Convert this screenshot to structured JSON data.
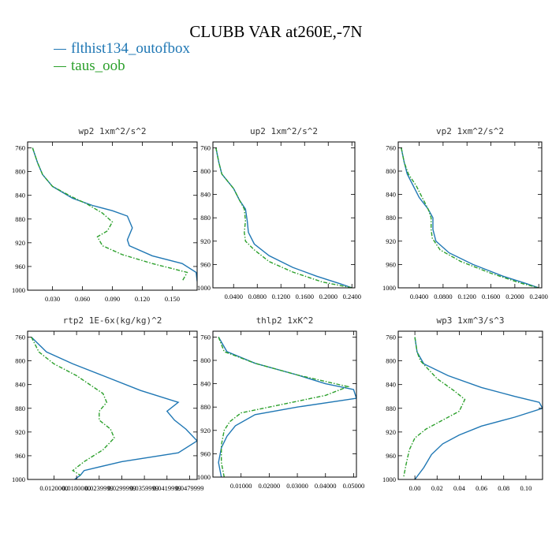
{
  "title": "CLUBB VAR at260E,-7N",
  "colors": {
    "series1": "#1f77b4",
    "series2": "#2ca02c",
    "frame": "#000000"
  },
  "legend": [
    {
      "name": "flthist134_outofbox",
      "color": "#1f77b4",
      "dash": "solid"
    },
    {
      "name": "taus_oob",
      "color": "#2ca02c",
      "dash": "dashdot"
    }
  ],
  "chart_data": [
    {
      "type": "line",
      "title": "wp2  1xm^2/s^2",
      "xlim": [
        0.005,
        0.175
      ],
      "ylim": [
        1000,
        750
      ],
      "y_inverted": true,
      "xticks": [
        0.03,
        0.06,
        0.09,
        0.12,
        0.15
      ],
      "xtick_labels": [
        "0.030",
        "0.060",
        "0.090",
        "0.120",
        "0.150"
      ],
      "yticks": [
        760,
        800,
        840,
        880,
        920,
        960,
        1000
      ],
      "ytick_labels": [
        "760",
        "800",
        "840",
        "880",
        "920",
        "960",
        "1000"
      ],
      "series": [
        {
          "name": "flthist134_outofbox",
          "points": [
            [
              0.01,
              760
            ],
            [
              0.015,
              785
            ],
            [
              0.02,
              805
            ],
            [
              0.03,
              825
            ],
            [
              0.05,
              845
            ],
            [
              0.07,
              857
            ],
            [
              0.09,
              866
            ],
            [
              0.105,
              875
            ],
            [
              0.11,
              895
            ],
            [
              0.105,
              915
            ],
            [
              0.107,
              925
            ],
            [
              0.13,
              942
            ],
            [
              0.16,
              955
            ],
            [
              0.174,
              970
            ],
            [
              0.175,
              985
            ]
          ]
        },
        {
          "name": "taus_oob",
          "points": [
            [
              0.01,
              760
            ],
            [
              0.015,
              785
            ],
            [
              0.02,
              805
            ],
            [
              0.03,
              825
            ],
            [
              0.05,
              843
            ],
            [
              0.065,
              855
            ],
            [
              0.08,
              870
            ],
            [
              0.09,
              885
            ],
            [
              0.085,
              900
            ],
            [
              0.075,
              910
            ],
            [
              0.08,
              925
            ],
            [
              0.1,
              940
            ],
            [
              0.13,
              955
            ],
            [
              0.165,
              970
            ],
            [
              0.16,
              985
            ]
          ]
        }
      ]
    },
    {
      "type": "line",
      "title": "up2  1xm^2/s^2",
      "xlim": [
        0.005,
        0.245
      ],
      "ylim": [
        1000,
        750
      ],
      "y_inverted": true,
      "xticks": [
        0.04,
        0.08,
        0.12,
        0.16,
        0.2,
        0.24
      ],
      "xtick_labels": [
        "0.0400",
        "0.0800",
        "0.1200",
        "0.1600",
        "0.2000",
        "0.2400"
      ],
      "yticks": [
        760,
        800,
        840,
        880,
        920,
        960,
        1000
      ],
      "ytick_labels": [
        "760",
        "800",
        "840",
        "880",
        "920",
        "960",
        "1000"
      ],
      "series": [
        {
          "name": "flthist134_outofbox",
          "points": [
            [
              0.01,
              760
            ],
            [
              0.015,
              785
            ],
            [
              0.02,
              805
            ],
            [
              0.04,
              830
            ],
            [
              0.05,
              850
            ],
            [
              0.06,
              865
            ],
            [
              0.063,
              885
            ],
            [
              0.065,
              905
            ],
            [
              0.075,
              925
            ],
            [
              0.1,
              945
            ],
            [
              0.14,
              965
            ],
            [
              0.18,
              980
            ],
            [
              0.22,
              993
            ],
            [
              0.24,
              1000
            ]
          ]
        },
        {
          "name": "taus_oob",
          "points": [
            [
              0.01,
              760
            ],
            [
              0.015,
              785
            ],
            [
              0.02,
              805
            ],
            [
              0.04,
              830
            ],
            [
              0.05,
              850
            ],
            [
              0.058,
              865
            ],
            [
              0.06,
              885
            ],
            [
              0.058,
              905
            ],
            [
              0.06,
              920
            ],
            [
              0.075,
              935
            ],
            [
              0.1,
              955
            ],
            [
              0.14,
              973
            ],
            [
              0.19,
              990
            ],
            [
              0.24,
              1000
            ]
          ]
        }
      ]
    },
    {
      "type": "line",
      "title": "vp2  1xm^2/s^2",
      "xlim": [
        0.005,
        0.245
      ],
      "ylim": [
        1000,
        750
      ],
      "y_inverted": true,
      "xticks": [
        0.04,
        0.08,
        0.12,
        0.16,
        0.2,
        0.24
      ],
      "xtick_labels": [
        "0.0400",
        "0.0800",
        "0.1200",
        "0.1600",
        "0.2000",
        "0.2400"
      ],
      "yticks": [
        760,
        800,
        840,
        880,
        920,
        960,
        1000
      ],
      "ytick_labels": [
        "760",
        "800",
        "840",
        "880",
        "920",
        "960",
        "1000"
      ],
      "series": [
        {
          "name": "flthist134_outofbox",
          "points": [
            [
              0.01,
              760
            ],
            [
              0.015,
              785
            ],
            [
              0.02,
              805
            ],
            [
              0.03,
              825
            ],
            [
              0.04,
              845
            ],
            [
              0.055,
              865
            ],
            [
              0.063,
              880
            ],
            [
              0.063,
              900
            ],
            [
              0.068,
              920
            ],
            [
              0.09,
              940
            ],
            [
              0.13,
              960
            ],
            [
              0.18,
              980
            ],
            [
              0.22,
              993
            ],
            [
              0.24,
              1000
            ]
          ]
        },
        {
          "name": "taus_oob",
          "points": [
            [
              0.01,
              760
            ],
            [
              0.015,
              785
            ],
            [
              0.022,
              805
            ],
            [
              0.035,
              825
            ],
            [
              0.045,
              845
            ],
            [
              0.055,
              865
            ],
            [
              0.06,
              880
            ],
            [
              0.06,
              900
            ],
            [
              0.062,
              915
            ],
            [
              0.075,
              935
            ],
            [
              0.11,
              955
            ],
            [
              0.16,
              975
            ],
            [
              0.21,
              992
            ],
            [
              0.24,
              1000
            ]
          ]
        }
      ]
    },
    {
      "type": "line",
      "title": "rtp2  1E-6x(kg/kg)^2",
      "xlim": [
        0.005,
        0.05
      ],
      "ylim": [
        1000,
        750
      ],
      "y_inverted": true,
      "xticks": [
        0.012,
        0.018,
        0.024,
        0.03,
        0.036,
        0.042,
        0.048
      ],
      "xtick_labels": [
        "0.0120000",
        "0.0180000",
        "0.0239999",
        "0.0299999",
        "0.0359999",
        "0.0419999",
        "0.0479999"
      ],
      "yticks": [
        760,
        800,
        840,
        880,
        920,
        960,
        1000
      ],
      "ytick_labels": [
        "760",
        "800",
        "840",
        "880",
        "920",
        "960",
        "1000"
      ],
      "series": [
        {
          "name": "flthist134_outofbox",
          "points": [
            [
              0.006,
              760
            ],
            [
              0.01,
              785
            ],
            [
              0.017,
              805
            ],
            [
              0.025,
              825
            ],
            [
              0.035,
              850
            ],
            [
              0.045,
              870
            ],
            [
              0.042,
              885
            ],
            [
              0.044,
              900
            ],
            [
              0.047,
              915
            ],
            [
              0.05,
              935
            ],
            [
              0.045,
              955
            ],
            [
              0.03,
              970
            ],
            [
              0.02,
              985
            ],
            [
              0.019,
              993
            ],
            [
              0.0175,
              1000
            ]
          ]
        },
        {
          "name": "taus_oob",
          "points": [
            [
              0.006,
              760
            ],
            [
              0.008,
              785
            ],
            [
              0.012,
              805
            ],
            [
              0.018,
              825
            ],
            [
              0.025,
              855
            ],
            [
              0.026,
              870
            ],
            [
              0.024,
              885
            ],
            [
              0.024,
              900
            ],
            [
              0.027,
              915
            ],
            [
              0.028,
              930
            ],
            [
              0.025,
              950
            ],
            [
              0.02,
              970
            ],
            [
              0.017,
              985
            ],
            [
              0.019,
              993
            ]
          ]
        }
      ]
    },
    {
      "type": "line",
      "title": "thlp2  1xK^2",
      "xlim": [
        0.0,
        0.051
      ],
      "ylim": [
        1000,
        750
      ],
      "y_inverted": true,
      "xticks": [
        0.01,
        0.02,
        0.03,
        0.04,
        0.05
      ],
      "xtick_labels": [
        "0.01000",
        "0.02000",
        "0.03000",
        "0.04000",
        "0.05000"
      ],
      "yticks": [
        760,
        800,
        840,
        880,
        920,
        960,
        1000
      ],
      "ytick_labels": [
        "760",
        "800",
        "840",
        "880",
        "920",
        "960",
        "1000"
      ],
      "series": [
        {
          "name": "flthist134_outofbox",
          "points": [
            [
              0.002,
              760
            ],
            [
              0.005,
              785
            ],
            [
              0.015,
              805
            ],
            [
              0.03,
              825
            ],
            [
              0.04,
              840
            ],
            [
              0.05,
              850
            ],
            [
              0.051,
              865
            ],
            [
              0.03,
              880
            ],
            [
              0.015,
              893
            ],
            [
              0.008,
              912
            ],
            [
              0.005,
              930
            ],
            [
              0.003,
              950
            ],
            [
              0.002,
              975
            ],
            [
              0.003,
              1000
            ]
          ]
        },
        {
          "name": "taus_oob",
          "points": [
            [
              0.002,
              760
            ],
            [
              0.004,
              785
            ],
            [
              0.015,
              805
            ],
            [
              0.03,
              825
            ],
            [
              0.048,
              845
            ],
            [
              0.04,
              860
            ],
            [
              0.025,
              875
            ],
            [
              0.01,
              890
            ],
            [
              0.006,
              905
            ],
            [
              0.004,
              920
            ],
            [
              0.003,
              945
            ],
            [
              0.003,
              975
            ],
            [
              0.004,
              1000
            ]
          ]
        }
      ]
    },
    {
      "type": "line",
      "title": "wp3  1xm^3/s^3",
      "xlim": [
        -0.015,
        0.115
      ],
      "ylim": [
        1000,
        750
      ],
      "y_inverted": true,
      "xticks": [
        0.0,
        0.02,
        0.04,
        0.06,
        0.08,
        0.1
      ],
      "xtick_labels": [
        "0.00",
        "0.02",
        "0.04",
        "0.06",
        "0.08",
        "0.10"
      ],
      "yticks": [
        760,
        800,
        840,
        880,
        920,
        960,
        1000
      ],
      "ytick_labels": [
        "760",
        "800",
        "840",
        "880",
        "920",
        "960",
        "1000"
      ],
      "series": [
        {
          "name": "flthist134_outofbox",
          "points": [
            [
              0.0,
              760
            ],
            [
              0.002,
              785
            ],
            [
              0.008,
              805
            ],
            [
              0.03,
              825
            ],
            [
              0.06,
              845
            ],
            [
              0.09,
              860
            ],
            [
              0.112,
              870
            ],
            [
              0.115,
              880
            ],
            [
              0.09,
              895
            ],
            [
              0.06,
              910
            ],
            [
              0.04,
              925
            ],
            [
              0.025,
              940
            ],
            [
              0.015,
              958
            ],
            [
              0.008,
              980
            ],
            [
              0.0,
              1000
            ]
          ]
        },
        {
          "name": "taus_oob",
          "points": [
            [
              0.0,
              760
            ],
            [
              0.002,
              785
            ],
            [
              0.005,
              800
            ],
            [
              0.02,
              830
            ],
            [
              0.035,
              850
            ],
            [
              0.045,
              865
            ],
            [
              0.04,
              885
            ],
            [
              0.025,
              900
            ],
            [
              0.01,
              915
            ],
            [
              0.0,
              930
            ],
            [
              -0.005,
              950
            ],
            [
              -0.008,
              975
            ],
            [
              -0.01,
              995
            ]
          ]
        }
      ]
    }
  ]
}
